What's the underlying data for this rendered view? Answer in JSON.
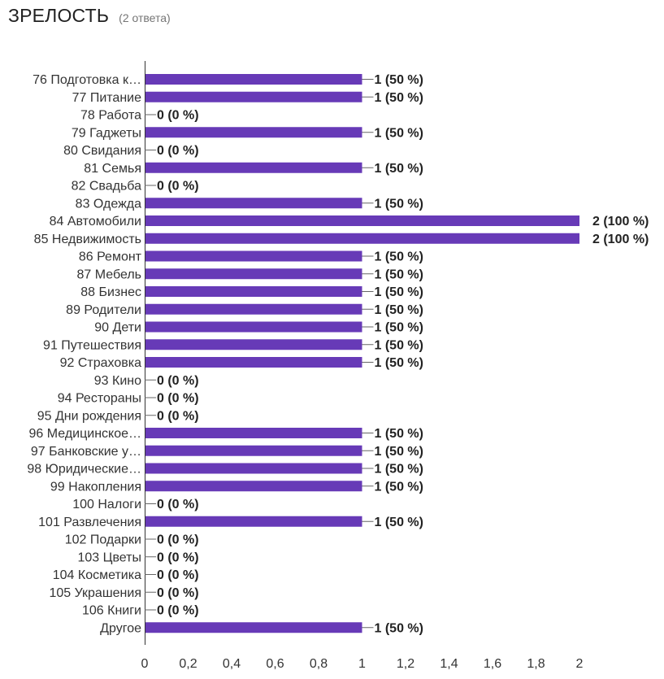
{
  "header": {
    "title": "ЗРЕЛОСТЬ",
    "subtitle": "(2 ответа)"
  },
  "chart_data": {
    "type": "bar",
    "orientation": "horizontal",
    "title": "ЗРЕЛОСТЬ",
    "subtitle": "(2 ответа)",
    "color": "#673ab7",
    "categories": [
      "76 Подготовка к…",
      "77 Питание",
      "78 Работа",
      "79 Гаджеты",
      "80 Свидания",
      "81 Семья",
      "82 Свадьба",
      "83 Одежда",
      "84 Автомобили",
      "85 Недвижимость",
      "86 Ремонт",
      "87 Мебель",
      "88 Бизнес",
      "89 Родители",
      "90 Дети",
      "91 Путешествия",
      "92 Страховка",
      "93 Кино",
      "94 Рестораны",
      "95 Дни рождения",
      "96 Медицинское…",
      "97 Банковские у…",
      "98 Юридические…",
      "99 Накопления",
      "100 Налоги",
      "101 Развлечения",
      "102 Подарки",
      "103 Цветы",
      "104 Косметика",
      "105 Украшения",
      "106 Книги",
      "Другое"
    ],
    "values": [
      1,
      1,
      0,
      1,
      0,
      1,
      0,
      1,
      2,
      2,
      1,
      1,
      1,
      1,
      1,
      1,
      1,
      0,
      0,
      0,
      1,
      1,
      1,
      1,
      0,
      1,
      0,
      0,
      0,
      0,
      0,
      1
    ],
    "value_labels": [
      "1 (50 %)",
      "1 (50 %)",
      "0 (0 %)",
      "1 (50 %)",
      "0 (0 %)",
      "1 (50 %)",
      "0 (0 %)",
      "1 (50 %)",
      "2 (100 %)",
      "2 (100 %)",
      "1 (50 %)",
      "1 (50 %)",
      "1 (50 %)",
      "1 (50 %)",
      "1 (50 %)",
      "1 (50 %)",
      "1 (50 %)",
      "0 (0 %)",
      "0 (0 %)",
      "0 (0 %)",
      "1 (50 %)",
      "1 (50 %)",
      "1 (50 %)",
      "1 (50 %)",
      "0 (0 %)",
      "1 (50 %)",
      "0 (0 %)",
      "0 (0 %)",
      "0 (0 %)",
      "0 (0 %)",
      "0 (0 %)",
      "1 (50 %)"
    ],
    "xlim": [
      0,
      2
    ],
    "xticks": [
      0,
      0.2,
      0.4,
      0.6,
      0.8,
      1,
      1.2,
      1.4,
      1.6,
      1.8,
      2
    ],
    "xtick_labels": [
      "0",
      "0,2",
      "0,4",
      "0,6",
      "0,8",
      "1",
      "1,2",
      "1,4",
      "1,6",
      "1,8",
      "2"
    ],
    "grid": false,
    "legend": "none"
  }
}
